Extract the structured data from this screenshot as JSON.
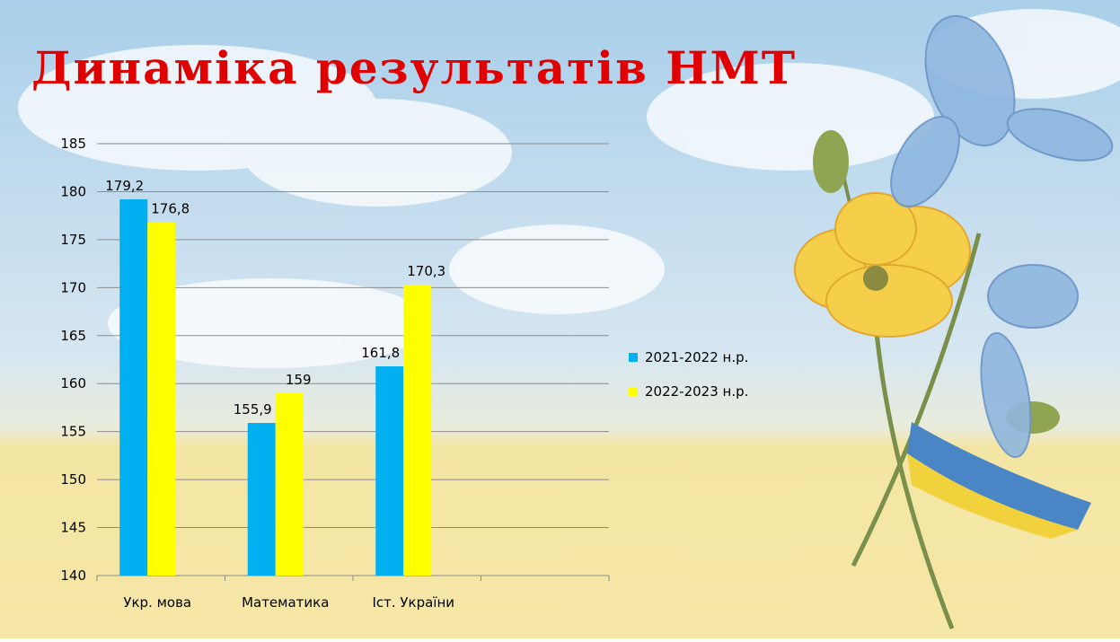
{
  "chart_data": {
    "type": "bar",
    "title": "Динаміка результатів НМТ",
    "categories": [
      "Укр. мова",
      "Математика",
      "Іст. України",
      null
    ],
    "series": [
      {
        "name": "2021-2022 н.р.",
        "color": "#00b0f0",
        "values": [
          179.2,
          155.9,
          161.8,
          null
        ],
        "value_labels": [
          "179,2",
          "155,9",
          "161,8",
          null
        ]
      },
      {
        "name": "2022-2023 н.р.",
        "color": "#ffff00",
        "values": [
          176.8,
          159,
          170.3,
          null
        ],
        "value_labels": [
          "176,8",
          "159",
          "170,3",
          null
        ]
      }
    ],
    "ylim": [
      140,
      185
    ],
    "yticks": [
      140,
      145,
      150,
      155,
      160,
      165,
      170,
      175,
      180,
      185
    ],
    "grid": true,
    "legend": "right"
  }
}
